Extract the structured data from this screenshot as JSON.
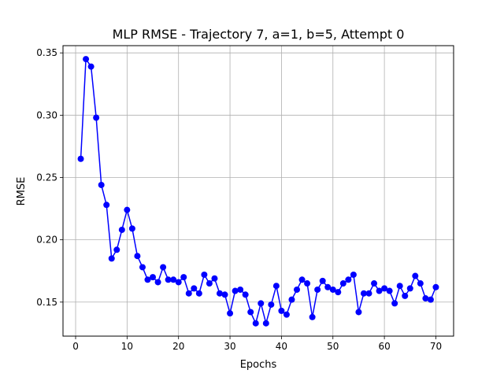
{
  "chart_data": {
    "type": "line",
    "title": "MLP RMSE - Trajectory 7, a=1, b=5, Attempt 0",
    "xlabel": "Epochs",
    "ylabel": "RMSE",
    "xlim": [
      -2.45,
      73.45
    ],
    "ylim": [
      0.1227,
      0.3558
    ],
    "grid": true,
    "x_ticks": [
      0,
      10,
      20,
      30,
      40,
      50,
      60,
      70
    ],
    "y_ticks": [
      0.15,
      0.2,
      0.25,
      0.3,
      0.35
    ],
    "x_tick_labels": [
      "0",
      "10",
      "20",
      "30",
      "40",
      "50",
      "60",
      "70"
    ],
    "y_tick_labels": [
      "0.15",
      "0.20",
      "0.25",
      "0.30",
      "0.35"
    ],
    "series": [
      {
        "color": "#0000ff",
        "marker": "circle",
        "x": [
          1,
          2,
          3,
          4,
          5,
          6,
          7,
          8,
          9,
          10,
          11,
          12,
          13,
          14,
          15,
          16,
          17,
          18,
          19,
          20,
          21,
          22,
          23,
          24,
          25,
          26,
          27,
          28,
          29,
          30,
          31,
          32,
          33,
          34,
          35,
          36,
          37,
          38,
          39,
          40,
          41,
          42,
          43,
          44,
          45,
          46,
          47,
          48,
          49,
          50,
          51,
          52,
          53,
          54,
          55,
          56,
          57,
          58,
          59,
          60,
          61,
          62,
          63,
          64,
          65,
          66,
          67,
          68,
          69,
          70
        ],
        "values": [
          0.265,
          0.345,
          0.339,
          0.298,
          0.244,
          0.228,
          0.185,
          0.192,
          0.208,
          0.224,
          0.209,
          0.187,
          0.178,
          0.168,
          0.17,
          0.166,
          0.178,
          0.168,
          0.168,
          0.166,
          0.17,
          0.157,
          0.161,
          0.157,
          0.172,
          0.165,
          0.169,
          0.157,
          0.156,
          0.141,
          0.159,
          0.16,
          0.156,
          0.142,
          0.133,
          0.149,
          0.133,
          0.148,
          0.163,
          0.143,
          0.14,
          0.152,
          0.16,
          0.168,
          0.165,
          0.138,
          0.16,
          0.167,
          0.162,
          0.16,
          0.158,
          0.165,
          0.168,
          0.172,
          0.142,
          0.157,
          0.157,
          0.165,
          0.159,
          0.161,
          0.159,
          0.149,
          0.163,
          0.155,
          0.161,
          0.171,
          0.165,
          0.153,
          0.152,
          0.162
        ]
      }
    ]
  }
}
